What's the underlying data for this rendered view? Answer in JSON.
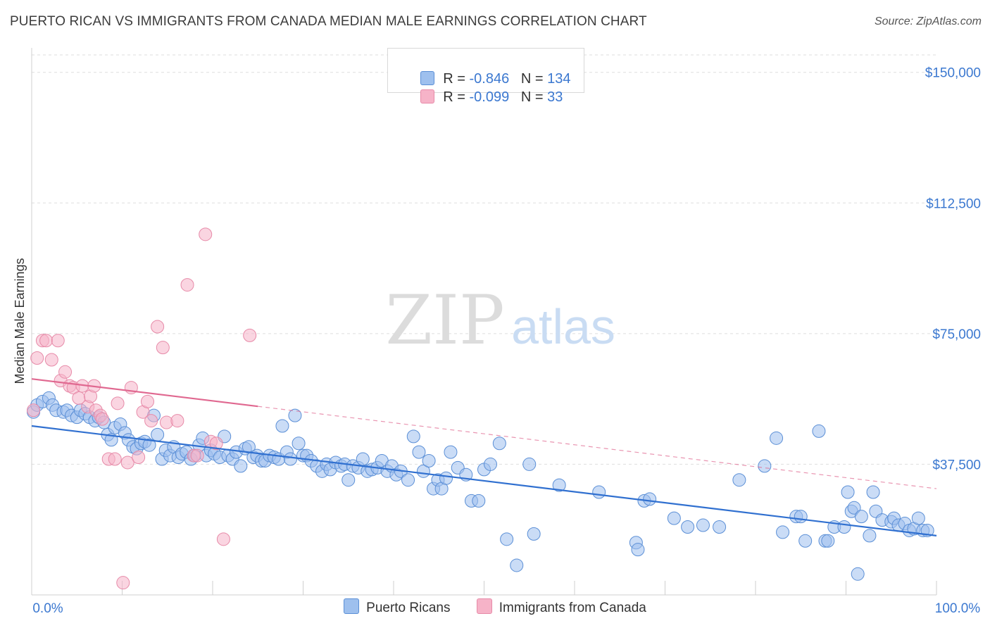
{
  "title": "PUERTO RICAN VS IMMIGRANTS FROM CANADA MEDIAN MALE EARNINGS CORRELATION CHART",
  "source": "Source: ZipAtlas.com",
  "watermark": {
    "zip": "ZIP",
    "atlas": "atlas"
  },
  "legend_top": [
    {
      "r_label": "R = ",
      "r": "-0.846",
      "n_label": "N = ",
      "n": "134",
      "color": "#9ec0ee"
    },
    {
      "r_label": "R = ",
      "r": "-0.099",
      "n_label": "N = ",
      "n": "33",
      "color": "#f6b3c8"
    }
  ],
  "legend_bottom": [
    {
      "label": "Puerto Ricans",
      "color": "#9ec0ee"
    },
    {
      "label": "Immigrants from Canada",
      "color": "#f6b3c8"
    }
  ],
  "chart_data": {
    "type": "scatter",
    "ylabel": "Median Male Earnings",
    "x_tick_labels": [
      "0.0%",
      "100.0%"
    ],
    "xlim": [
      0,
      100
    ],
    "ylim": [
      0,
      155000
    ],
    "y_ticks": [
      {
        "value": 150000,
        "label": "$150,000"
      },
      {
        "value": 112500,
        "label": "$112,500"
      },
      {
        "value": 75000,
        "label": "$75,000"
      },
      {
        "value": 37500,
        "label": "$37,500"
      }
    ],
    "grid": true,
    "series": [
      {
        "name": "Puerto Ricans",
        "color": "#9ec0ee",
        "stroke": "#5b8fd6",
        "trend": {
          "x0": 0,
          "y0": 48500,
          "x1": 100,
          "y1": 17000,
          "solid_until": 100,
          "color": "#3070d0"
        },
        "points": [
          [
            0.2,
            52500
          ],
          [
            0.6,
            54500
          ],
          [
            1.2,
            55500
          ],
          [
            1.9,
            56500
          ],
          [
            2.3,
            54500
          ],
          [
            2.7,
            53000
          ],
          [
            3.5,
            52500
          ],
          [
            3.9,
            53000
          ],
          [
            4.4,
            51500
          ],
          [
            5.0,
            51000
          ],
          [
            5.4,
            53000
          ],
          [
            5.9,
            52000
          ],
          [
            6.4,
            51000
          ],
          [
            7.0,
            50000
          ],
          [
            7.4,
            51000
          ],
          [
            8.0,
            49500
          ],
          [
            8.4,
            46000
          ],
          [
            8.8,
            44500
          ],
          [
            9.2,
            48000
          ],
          [
            9.8,
            49000
          ],
          [
            10.3,
            46500
          ],
          [
            10.7,
            44500
          ],
          [
            11.2,
            42500
          ],
          [
            11.6,
            42000
          ],
          [
            12.1,
            43500
          ],
          [
            12.5,
            44000
          ],
          [
            13.0,
            43000
          ],
          [
            13.5,
            51500
          ],
          [
            13.9,
            46000
          ],
          [
            14.4,
            39000
          ],
          [
            14.8,
            41500
          ],
          [
            15.3,
            40000
          ],
          [
            15.7,
            42500
          ],
          [
            16.2,
            39500
          ],
          [
            16.6,
            40500
          ],
          [
            17.1,
            41000
          ],
          [
            17.6,
            39000
          ],
          [
            18.0,
            40000
          ],
          [
            18.5,
            43000
          ],
          [
            18.9,
            45000
          ],
          [
            19.3,
            40000
          ],
          [
            19.8,
            41500
          ],
          [
            20.2,
            40500
          ],
          [
            20.8,
            39500
          ],
          [
            21.3,
            45500
          ],
          [
            21.7,
            40000
          ],
          [
            22.2,
            39000
          ],
          [
            22.6,
            41000
          ],
          [
            23.1,
            37000
          ],
          [
            23.6,
            42000
          ],
          [
            24.0,
            42500
          ],
          [
            24.5,
            39500
          ],
          [
            24.9,
            40000
          ],
          [
            25.4,
            38500
          ],
          [
            25.8,
            38500
          ],
          [
            26.3,
            40000
          ],
          [
            26.8,
            39500
          ],
          [
            27.3,
            39000
          ],
          [
            27.7,
            48500
          ],
          [
            28.2,
            41000
          ],
          [
            28.6,
            39000
          ],
          [
            29.1,
            51500
          ],
          [
            29.5,
            43500
          ],
          [
            30.0,
            40000
          ],
          [
            30.4,
            40000
          ],
          [
            30.9,
            38500
          ],
          [
            31.5,
            37000
          ],
          [
            32.1,
            35500
          ],
          [
            32.6,
            37500
          ],
          [
            33.0,
            36000
          ],
          [
            33.6,
            38000
          ],
          [
            34.2,
            37000
          ],
          [
            34.6,
            37500
          ],
          [
            35.0,
            33000
          ],
          [
            35.5,
            37000
          ],
          [
            36.1,
            36500
          ],
          [
            36.6,
            39000
          ],
          [
            37.1,
            35500
          ],
          [
            37.6,
            36000
          ],
          [
            38.2,
            36500
          ],
          [
            38.7,
            38500
          ],
          [
            39.3,
            35500
          ],
          [
            39.8,
            37000
          ],
          [
            40.3,
            34500
          ],
          [
            40.8,
            35500
          ],
          [
            41.6,
            33000
          ],
          [
            42.2,
            45500
          ],
          [
            42.8,
            41000
          ],
          [
            43.3,
            35500
          ],
          [
            43.9,
            38500
          ],
          [
            44.4,
            30500
          ],
          [
            44.9,
            33000
          ],
          [
            45.3,
            30500
          ],
          [
            45.8,
            33500
          ],
          [
            46.3,
            41000
          ],
          [
            47.1,
            36500
          ],
          [
            48.0,
            34500
          ],
          [
            48.6,
            27000
          ],
          [
            49.4,
            27000
          ],
          [
            50.0,
            36000
          ],
          [
            50.7,
            37500
          ],
          [
            51.7,
            43500
          ],
          [
            52.5,
            16000
          ],
          [
            53.6,
            8500
          ],
          [
            55.0,
            37500
          ],
          [
            55.5,
            17500
          ],
          [
            58.3,
            31500
          ],
          [
            62.7,
            29500
          ],
          [
            66.8,
            15000
          ],
          [
            67.0,
            13000
          ],
          [
            67.7,
            27000
          ],
          [
            68.3,
            27500
          ],
          [
            71.0,
            22000
          ],
          [
            72.5,
            19500
          ],
          [
            74.2,
            20000
          ],
          [
            76.0,
            19500
          ],
          [
            78.2,
            33000
          ],
          [
            81.0,
            37000
          ],
          [
            82.3,
            45000
          ],
          [
            83.0,
            18000
          ],
          [
            84.5,
            22500
          ],
          [
            85.0,
            22500
          ],
          [
            85.5,
            15500
          ],
          [
            87.0,
            47000
          ],
          [
            87.7,
            15500
          ],
          [
            88.0,
            15500
          ],
          [
            88.7,
            19500
          ],
          [
            89.8,
            19500
          ],
          [
            90.2,
            29500
          ],
          [
            90.6,
            24000
          ],
          [
            90.9,
            25000
          ],
          [
            91.3,
            6000
          ],
          [
            91.7,
            22500
          ],
          [
            92.6,
            17000
          ],
          [
            93.0,
            29500
          ],
          [
            93.3,
            24000
          ],
          [
            94.0,
            21500
          ],
          [
            95.0,
            21000
          ],
          [
            95.3,
            22000
          ],
          [
            95.8,
            20000
          ],
          [
            96.5,
            20500
          ],
          [
            97.0,
            18500
          ],
          [
            97.5,
            19000
          ],
          [
            98.0,
            22000
          ],
          [
            98.5,
            18500
          ],
          [
            99.0,
            18500
          ]
        ]
      },
      {
        "name": "Immigrants from Canada",
        "color": "#f6b3c8",
        "stroke": "#e78aa8",
        "trend": {
          "x0": 0,
          "y0": 62000,
          "x1": 100,
          "y1": 30500,
          "solid_until": 25,
          "color": "#e06890"
        },
        "points": [
          [
            0.2,
            53000
          ],
          [
            0.6,
            68000
          ],
          [
            1.2,
            73000
          ],
          [
            1.6,
            73000
          ],
          [
            2.2,
            67500
          ],
          [
            2.9,
            73000
          ],
          [
            3.2,
            61500
          ],
          [
            3.7,
            64000
          ],
          [
            4.2,
            60000
          ],
          [
            4.6,
            59500
          ],
          [
            5.2,
            56500
          ],
          [
            5.6,
            60000
          ],
          [
            6.2,
            54000
          ],
          [
            6.5,
            57000
          ],
          [
            6.9,
            60000
          ],
          [
            7.1,
            53000
          ],
          [
            7.6,
            51500
          ],
          [
            7.8,
            50500
          ],
          [
            8.5,
            39000
          ],
          [
            9.2,
            39000
          ],
          [
            9.5,
            55000
          ],
          [
            10.1,
            3500
          ],
          [
            10.6,
            38000
          ],
          [
            11.0,
            59500
          ],
          [
            11.8,
            39500
          ],
          [
            12.3,
            52500
          ],
          [
            12.8,
            55500
          ],
          [
            13.2,
            50000
          ],
          [
            13.9,
            77000
          ],
          [
            14.5,
            71000
          ],
          [
            14.9,
            49500
          ],
          [
            16.1,
            50000
          ],
          [
            17.2,
            89000
          ],
          [
            17.9,
            40000
          ],
          [
            18.3,
            40000
          ],
          [
            19.2,
            103500
          ],
          [
            19.8,
            44000
          ],
          [
            20.4,
            43500
          ],
          [
            21.2,
            16000
          ],
          [
            24.1,
            74500
          ]
        ]
      }
    ]
  }
}
